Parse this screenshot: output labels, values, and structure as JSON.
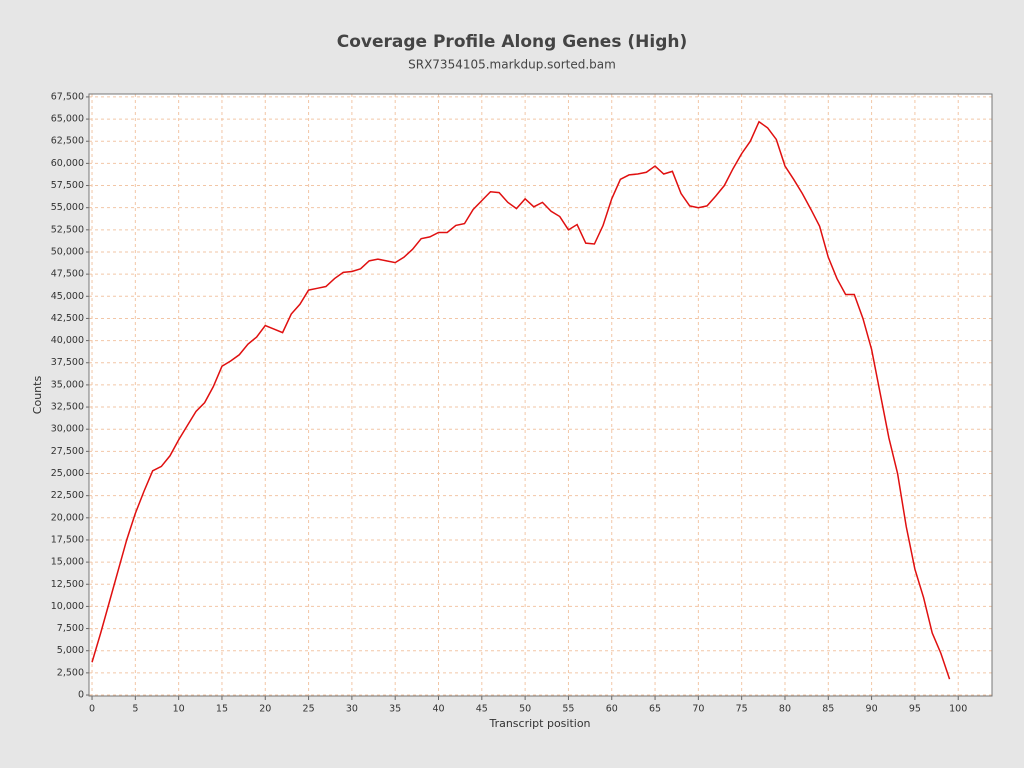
{
  "chart_data": {
    "type": "line",
    "title": "Coverage Profile Along Genes (High)",
    "subtitle": "SRX7354105.markdup.sorted.bam",
    "x_label": "Transcript position",
    "y_label": "Counts",
    "grid": true,
    "x": [
      0,
      1,
      2,
      3,
      4,
      5,
      6,
      7,
      8,
      9,
      10,
      11,
      12,
      13,
      14,
      15,
      16,
      17,
      18,
      19,
      20,
      21,
      22,
      23,
      24,
      25,
      26,
      27,
      28,
      29,
      30,
      31,
      32,
      33,
      34,
      35,
      36,
      37,
      38,
      39,
      40,
      41,
      42,
      43,
      44,
      45,
      46,
      47,
      48,
      49,
      50,
      51,
      52,
      53,
      54,
      55,
      56,
      57,
      58,
      59,
      60,
      61,
      62,
      63,
      64,
      65,
      66,
      67,
      68,
      69,
      70,
      71,
      72,
      73,
      74,
      75,
      76,
      77,
      78,
      79,
      80,
      81,
      82,
      83,
      84,
      85,
      86,
      87,
      88,
      89,
      90,
      91,
      92,
      93,
      94,
      95,
      96,
      97,
      98,
      99
    ],
    "series": [
      {
        "color": "#e01010",
        "values": [
          3700,
          7000,
          10500,
          14000,
          17500,
          20500,
          23000,
          25300,
          25800,
          27000,
          28800,
          30400,
          32000,
          33000,
          34800,
          37100,
          37700,
          38400,
          39600,
          40400,
          41700,
          41300,
          40900,
          43000,
          44100,
          45700,
          45900,
          46100,
          47000,
          47700,
          47800,
          48100,
          49000,
          49200,
          49000,
          48800,
          49400,
          50300,
          51500,
          51700,
          52200,
          52200,
          53000,
          53200,
          54800,
          55800,
          56800,
          56700,
          55600,
          54900,
          56000,
          55100,
          55600,
          54600,
          54000,
          52500,
          53100,
          51000,
          50900,
          53000,
          56000,
          58200,
          58700,
          58800,
          59000,
          59700,
          58800,
          59100,
          56600,
          55200,
          55000,
          55200,
          56300,
          57500,
          59400,
          61100,
          62500,
          64700,
          64000,
          62700,
          59700,
          58200,
          56600,
          54800,
          52900,
          49400,
          47000,
          45200,
          45200,
          42500,
          39000,
          34000,
          29000,
          25000,
          19000,
          14200,
          11000,
          7000,
          4700,
          1800
        ]
      }
    ],
    "xlim": [
      -0.35,
      103.9
    ],
    "ylim": [
      -110,
      67830
    ],
    "xticks": [
      0,
      5,
      10,
      15,
      20,
      25,
      30,
      35,
      40,
      45,
      50,
      55,
      60,
      65,
      70,
      75,
      80,
      85,
      90,
      95,
      100
    ],
    "yticks": [
      0,
      {
        "value": 2500,
        "label": "2,500"
      },
      {
        "value": 5000,
        "label": "5,000"
      },
      {
        "value": 7500,
        "label": "7,500"
      },
      {
        "value": 10000,
        "label": "10,000"
      },
      {
        "value": 12500,
        "label": "12,500"
      },
      {
        "value": 15000,
        "label": "15,000"
      },
      {
        "value": 17500,
        "label": "17,500"
      },
      {
        "value": 20000,
        "label": "20,000"
      },
      {
        "value": 22500,
        "label": "22,500"
      },
      {
        "value": 25000,
        "label": "25,000"
      },
      {
        "value": 27500,
        "label": "27,500"
      },
      {
        "value": 30000,
        "label": "30,000"
      },
      {
        "value": 32500,
        "label": "32,500"
      },
      {
        "value": 35000,
        "label": "35,000"
      },
      {
        "value": 37500,
        "label": "37,500"
      },
      {
        "value": 40000,
        "label": "40,000"
      },
      {
        "value": 42500,
        "label": "42,500"
      },
      {
        "value": 45000,
        "label": "45,000"
      },
      {
        "value": 47500,
        "label": "47,500"
      },
      {
        "value": 50000,
        "label": "50,000"
      },
      {
        "value": 52500,
        "label": "52,500"
      },
      {
        "value": 55000,
        "label": "55,000"
      },
      {
        "value": 57500,
        "label": "57,500"
      },
      {
        "value": 60000,
        "label": "60,000"
      },
      {
        "value": 62500,
        "label": "62,500"
      },
      {
        "value": 65000,
        "label": "65,000"
      },
      {
        "value": 67500,
        "label": "67,500"
      }
    ]
  }
}
